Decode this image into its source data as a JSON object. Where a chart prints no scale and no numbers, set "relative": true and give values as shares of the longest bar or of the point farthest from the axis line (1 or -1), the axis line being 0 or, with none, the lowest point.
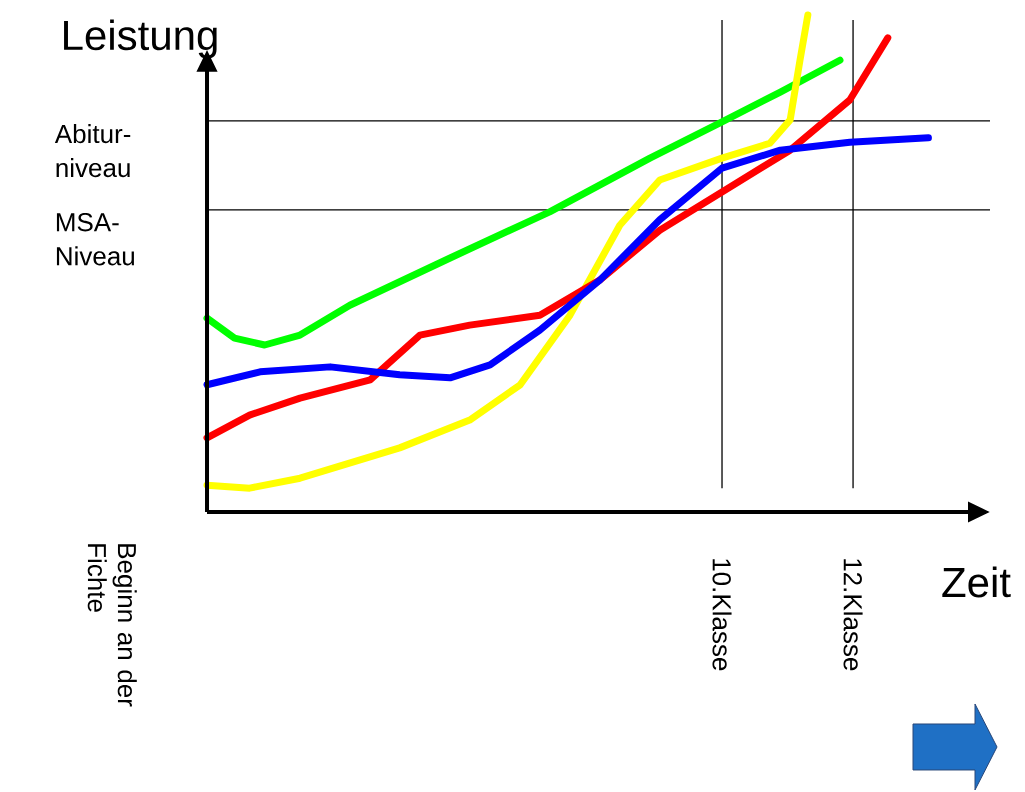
{
  "chart_data": {
    "type": "line",
    "relative": true,
    "xlabel": "Zeit",
    "ylabel": "Leistung",
    "tick_labels": "x",
    "xlim": [
      2.14,
      14.09
    ],
    "xticks": [
      {
        "value": 10,
        "label": "10.Klasse"
      },
      {
        "value": 12,
        "label": "12.Klasse"
      }
    ],
    "annotations": [
      "Beginn an der Fichte"
    ],
    "ref_lines": [
      {
        "axis": "y",
        "value": 0.787,
        "label": "Abitur-niveau",
        "color": "#000000"
      },
      {
        "axis": "y",
        "value": 0.608,
        "label": "MSA-Niveau",
        "color": "#000000"
      },
      {
        "axis": "x",
        "value": 10,
        "color": "#000000"
      },
      {
        "axis": "x",
        "value": 12,
        "color": "#000000"
      }
    ],
    "series": [
      {
        "color": "#00ff00",
        "x": [
          2.14,
          2.56,
          3.02,
          3.56,
          4.32,
          5.85,
          7.37,
          8.9,
          10,
          10.89,
          11.8
        ],
        "values": [
          0.39,
          0.35,
          0.336,
          0.356,
          0.416,
          0.511,
          0.604,
          0.712,
          0.785,
          0.845,
          0.909
        ]
      },
      {
        "color": "#ffff00",
        "x": [
          2.14,
          2.79,
          3.56,
          5.08,
          6.15,
          6.92,
          7.68,
          8.44,
          9.05,
          10,
          10.73,
          11.04,
          11.19,
          11.31
        ],
        "values": [
          0.054,
          0.048,
          0.068,
          0.129,
          0.185,
          0.256,
          0.396,
          0.577,
          0.668,
          0.712,
          0.742,
          0.789,
          0.909,
          1.0
        ]
      },
      {
        "color": "#ff0000",
        "x": [
          2.14,
          2.79,
          3.56,
          4.63,
          5.39,
          6.15,
          7.22,
          8.14,
          9.05,
          10,
          11.04,
          11.95,
          12.53
        ],
        "values": [
          0.149,
          0.195,
          0.229,
          0.266,
          0.356,
          0.376,
          0.396,
          0.467,
          0.567,
          0.644,
          0.728,
          0.829,
          0.954
        ]
      },
      {
        "color": "#0000ff",
        "x": [
          2.14,
          2.95,
          4.02,
          5.08,
          5.85,
          6.46,
          7.22,
          8.14,
          9.05,
          10,
          10.89,
          11.95,
          13.15
        ],
        "values": [
          0.256,
          0.282,
          0.292,
          0.276,
          0.27,
          0.296,
          0.366,
          0.467,
          0.588,
          0.692,
          0.728,
          0.744,
          0.753
        ]
      }
    ]
  }
}
